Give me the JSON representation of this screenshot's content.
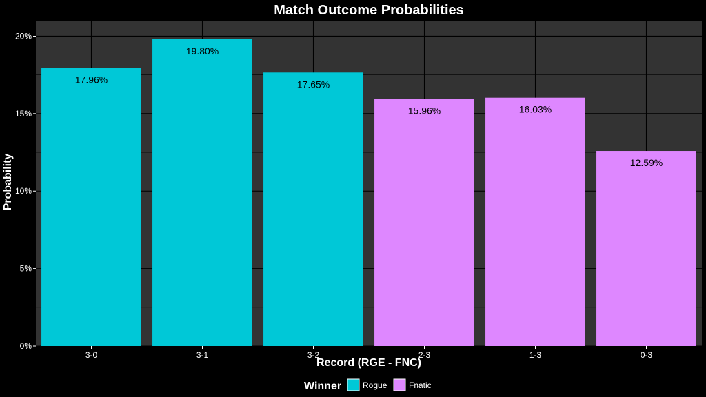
{
  "chart_data": {
    "type": "bar",
    "title": "Match Outcome Probabilities",
    "xlabel": "Record (RGE - FNC)",
    "ylabel": "Probability",
    "categories": [
      "3-0",
      "3-1",
      "3-2",
      "2-3",
      "1-3",
      "0-3"
    ],
    "values": [
      17.96,
      19.8,
      17.65,
      15.96,
      16.03,
      12.59
    ],
    "value_labels": [
      "17.96%",
      "19.80%",
      "17.65%",
      "15.96%",
      "16.03%",
      "12.59%"
    ],
    "winner": [
      "Rogue",
      "Rogue",
      "Rogue",
      "Fnatic",
      "Fnatic",
      "Fnatic"
    ],
    "ylim": [
      0,
      21
    ],
    "yticks": [
      0,
      5,
      10,
      15,
      20
    ],
    "ytick_labels": [
      "0%",
      "5%",
      "10%",
      "15%",
      "20%"
    ],
    "grid": true,
    "legend": {
      "title": "Winner",
      "placement": "bottom",
      "entries": [
        {
          "name": "Rogue",
          "color": "#00c8d7"
        },
        {
          "name": "Fnatic",
          "color": "#de87ff"
        }
      ]
    }
  },
  "colors": {
    "background": "#000000",
    "panel": "#333333",
    "grid": "#000000",
    "text": "#ffffff",
    "label_text": "#000000"
  }
}
